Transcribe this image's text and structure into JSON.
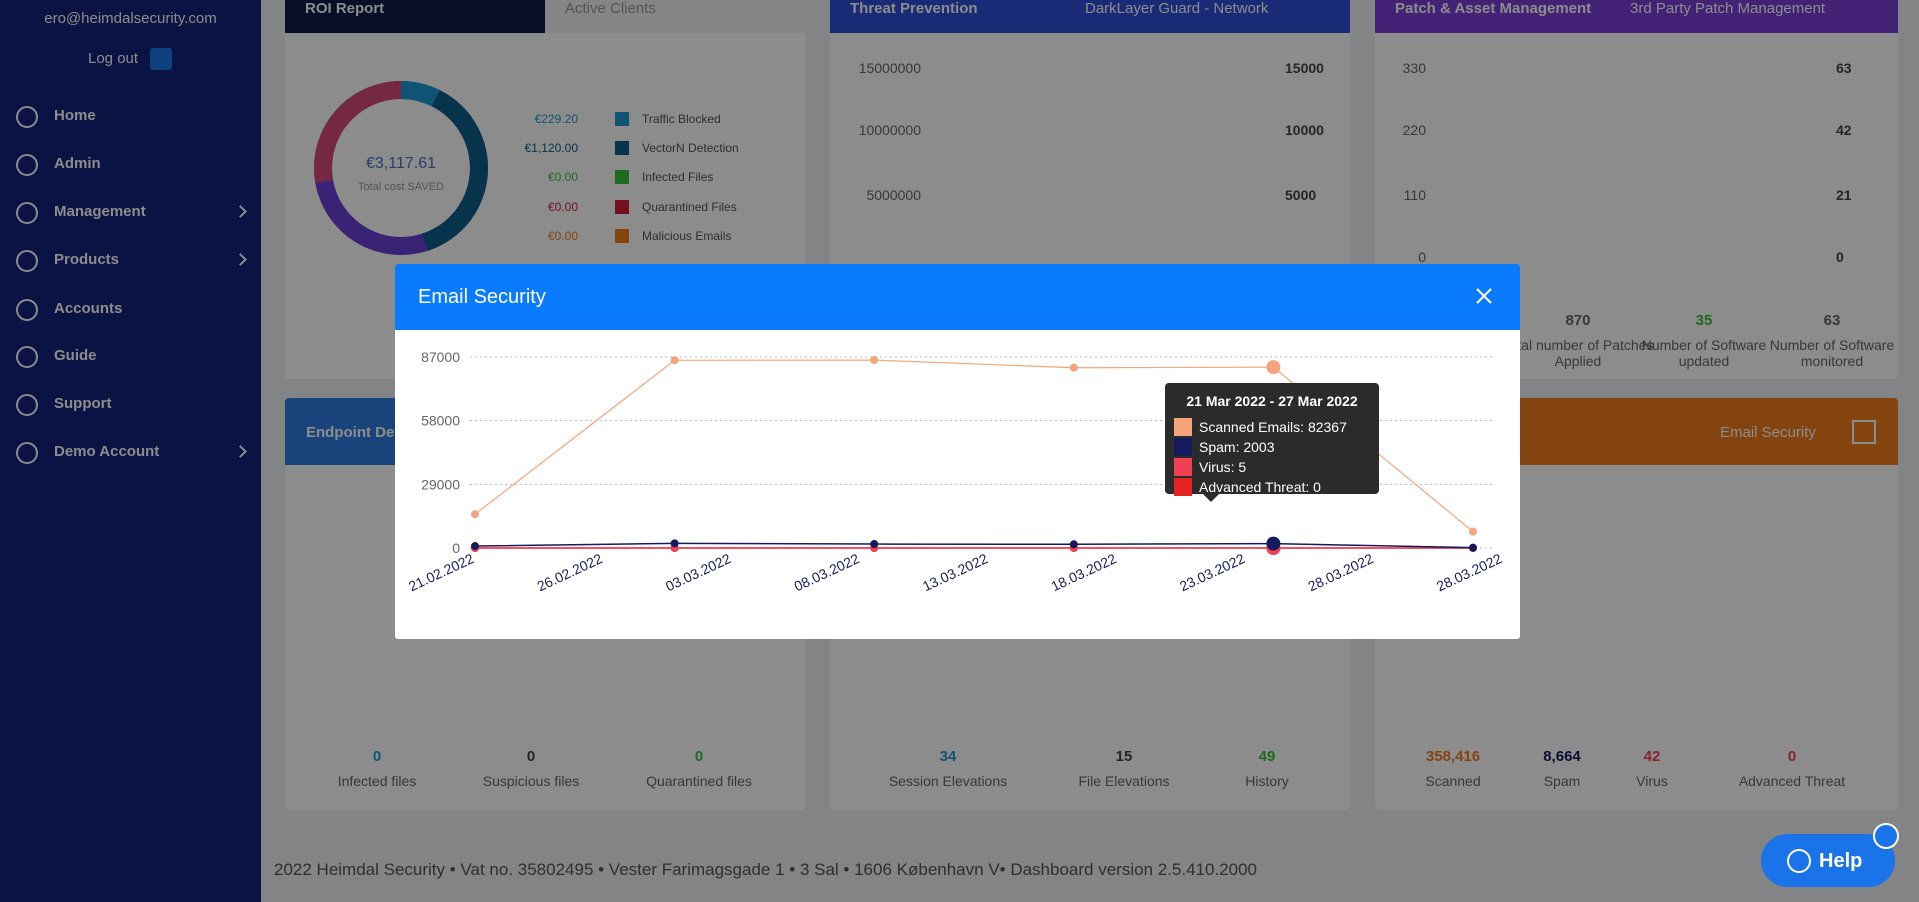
{
  "sidebar": {
    "email": "ero@heimdalsecurity.com",
    "logout": "Log out",
    "nav": [
      "Home",
      "Admin",
      "Management",
      "Products",
      "Accounts",
      "Guide",
      "Support",
      "Demo Account"
    ]
  },
  "roi_card": {
    "tabs": [
      "ROI Report",
      "Active Clients"
    ],
    "total": "€3,117.61",
    "total_label": "Total cost SAVED",
    "legend": [
      {
        "value": "€229.20",
        "label": "Traffic Blocked",
        "color": "#1e9ad6"
      },
      {
        "value": "€1,120.00",
        "label": "VectorN Detection",
        "color": "#0e5e8a"
      },
      {
        "value": "€0.00",
        "label": "Infected Files",
        "color": "#3bbf3b"
      },
      {
        "value": "€0.00",
        "label": "Quarantined Files",
        "color": "#d21f3c"
      },
      {
        "value": "€0.00",
        "label": "Malicious Emails",
        "color": "#f07c1c"
      }
    ]
  },
  "threat_card": {
    "title": "Threat Prevention",
    "dropdown": "DarkLayer Guard - Network",
    "left_ticks": [
      "15000000",
      "10000000",
      "5000000"
    ],
    "right_ticks": [
      "15000",
      "10000",
      "5000"
    ]
  },
  "patch_card": {
    "title": "Patch & Asset Management",
    "dropdown": "3rd Party Patch Management",
    "left_ticks": [
      "330",
      "220",
      "110",
      "0"
    ],
    "right_ticks": [
      "63",
      "42",
      "21",
      "0"
    ],
    "stats": [
      {
        "value": "870",
        "label": "Total number of Patches Applied"
      },
      {
        "value": "35",
        "label": "Number of Software updated"
      },
      {
        "value": "63",
        "label": "Number of Software monitored"
      }
    ]
  },
  "endpoint_card": {
    "title": "Endpoint Detection",
    "stats": [
      {
        "value": "0",
        "label": "Infected files"
      },
      {
        "value": "0",
        "label": "Suspicious files"
      },
      {
        "value": "0",
        "label": "Quarantined files"
      }
    ]
  },
  "privilege_card": {
    "stats": [
      {
        "value": "34",
        "label": "Session Elevations"
      },
      {
        "value": "15",
        "label": "File Elevations"
      },
      {
        "value": "49",
        "label": "History"
      }
    ]
  },
  "email_card": {
    "dropdown": "Email Security",
    "stats": [
      {
        "value": "358,416",
        "label": "Scanned"
      },
      {
        "value": "8,664",
        "label": "Spam"
      },
      {
        "value": "42",
        "label": "Virus"
      },
      {
        "value": "0",
        "label": "Advanced Threat"
      }
    ]
  },
  "footer": "2022 Heimdal Security • Vat no. 35802495 • Vester Farimagsgade 1 • 3 Sal • 1606 København V• Dashboard version 2.5.410.2000",
  "help": "Help",
  "modal": {
    "title": "Email Security"
  },
  "chart_data": {
    "type": "line",
    "categories": [
      null,
      null,
      null,
      null,
      null,
      null
    ],
    "xtick_labels": [
      "21.02.2022",
      "26.02.2022",
      "03.03.2022",
      "08.03.2022",
      "13.03.2022",
      "18.03.2022",
      "23.03.2022",
      "28.03.2022",
      "28.03.2022"
    ],
    "ylim": [
      0,
      87000
    ],
    "yticks": [
      0,
      29000,
      58000,
      87000
    ],
    "grid": true,
    "series": [
      {
        "name": "Scanned Emails",
        "color": "#f6a47b",
        "values": [
          15400,
          85500,
          85600,
          82100,
          82367,
          7449
        ]
      },
      {
        "name": "Spam",
        "color": "#151a5c",
        "values": [
          900,
          2100,
          1800,
          1700,
          2003,
          161
        ]
      },
      {
        "name": "Virus",
        "color": "#ef4056",
        "values": [
          8,
          10,
          7,
          6,
          5,
          6
        ]
      },
      {
        "name": "Advanced Threat",
        "color": "#e52222",
        "values": [
          0,
          0,
          0,
          0,
          0,
          0
        ]
      }
    ],
    "tooltip": {
      "title": "21 Mar 2022 - 27 Mar 2022",
      "rows": [
        "Scanned Emails: 82367",
        "Spam: 2003",
        "Virus: 5",
        "Advanced Threat: 0"
      ]
    }
  }
}
